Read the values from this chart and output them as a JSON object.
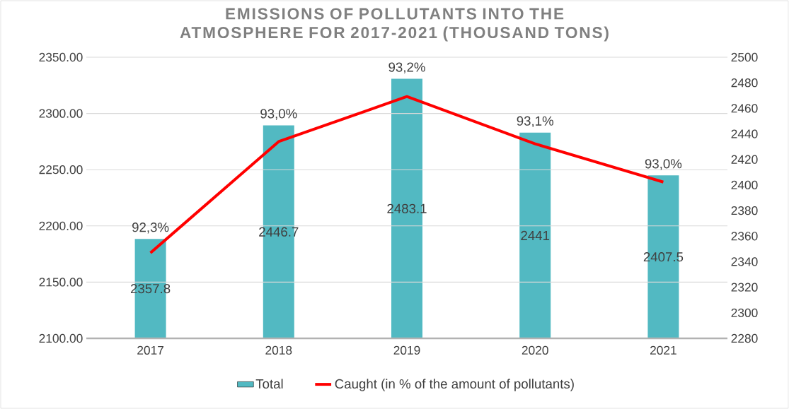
{
  "chart_data": {
    "type": "bar",
    "title": "EMISSIONS OF POLLUTANTS INTO THE ATMOSPHERE FOR 2017-2021 (THOUSAND TONS)",
    "categories": [
      "2017",
      "2018",
      "2019",
      "2020",
      "2021"
    ],
    "series": [
      {
        "name": "Total",
        "axis": "y2",
        "color": "#52b9c2",
        "values": [
          2357.8,
          2446.7,
          2483.1,
          2441,
          2407.5
        ],
        "value_labels": [
          "2357.8",
          "2446.7",
          "2483.1",
          "2441",
          "2407.5"
        ]
      },
      {
        "name": "Caught (in % of the amount of pollutants)",
        "type": "line",
        "color": "#ff0000",
        "values": [
          2176,
          2275,
          2315,
          2273,
          2239
        ]
      }
    ],
    "annotations": [
      {
        "text": "92,3%",
        "x": "2017",
        "y": 2176
      },
      {
        "text": "93,0%",
        "x": "2018",
        "y": 2275
      },
      {
        "text": "93,2%",
        "x": "2019",
        "y": 2315
      },
      {
        "text": "93,1%",
        "x": "2020",
        "y": 2273
      },
      {
        "text": "93,0%",
        "x": "2021",
        "y": 2239
      }
    ],
    "ylim": [
      2100,
      2350
    ],
    "yticks": [
      {
        "value": 2100,
        "label": "2100.00"
      },
      {
        "value": 2150,
        "label": "2150.00"
      },
      {
        "value": 2200,
        "label": "2200.00"
      },
      {
        "value": 2250,
        "label": "2250.00"
      },
      {
        "value": 2300,
        "label": "2300.00"
      },
      {
        "value": 2350,
        "label": "2350.00"
      }
    ],
    "y2lim": [
      2280,
      2500
    ],
    "y2ticks": [
      2280,
      2300,
      2320,
      2340,
      2360,
      2380,
      2400,
      2420,
      2440,
      2460,
      2480,
      2500
    ],
    "grid": "y",
    "legend": "bottom"
  }
}
